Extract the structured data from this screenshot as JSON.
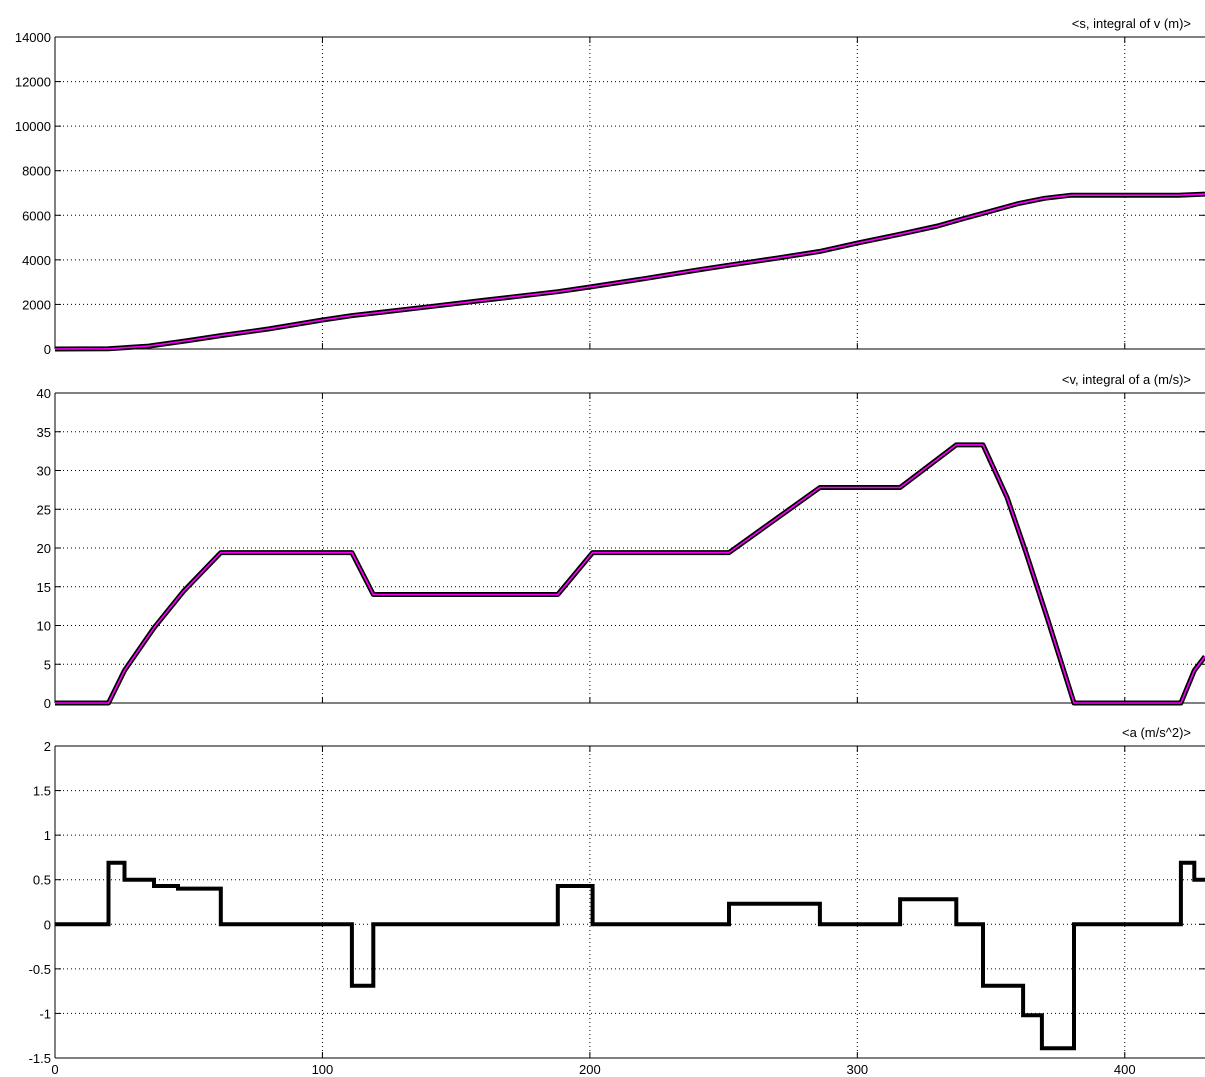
{
  "chart_data": [
    {
      "type": "line",
      "title": "<s, integral of v (m)>",
      "xlim": [
        0,
        430
      ],
      "ylim": [
        0,
        14000
      ],
      "yticks": [
        0,
        2000,
        4000,
        6000,
        8000,
        10000,
        12000,
        14000
      ],
      "xticks": [
        100,
        200,
        300,
        400
      ],
      "grid": true,
      "series": [
        {
          "color_outer": "#000000",
          "color_inner": "#ff00ff",
          "x": [
            0,
            20,
            35,
            50,
            62,
            80,
            100,
            111,
            120,
            140,
            160,
            188,
            200,
            220,
            240,
            252,
            270,
            286,
            300,
            316,
            330,
            340,
            347,
            360,
            370,
            380,
            400,
            420,
            430
          ],
          "y": [
            0,
            10,
            130,
            380,
            600,
            900,
            1300,
            1500,
            1620,
            1900,
            2180,
            2570,
            2780,
            3150,
            3540,
            3760,
            4080,
            4380,
            4750,
            5150,
            5520,
            5860,
            6090,
            6520,
            6760,
            6900,
            6900,
            6900,
            6950
          ]
        }
      ]
    },
    {
      "type": "line",
      "title": "<v, integral of a (m/s)>",
      "xlim": [
        0,
        430
      ],
      "ylim": [
        0,
        40
      ],
      "yticks": [
        0,
        5,
        10,
        15,
        20,
        25,
        30,
        35,
        40
      ],
      "xticks": [
        100,
        200,
        300,
        400
      ],
      "grid": true,
      "series": [
        {
          "color_outer": "#000000",
          "color_inner": "#ff00ff",
          "x": [
            0,
            20,
            26,
            37,
            48,
            62,
            111,
            119,
            188,
            201,
            252,
            286,
            316,
            337,
            347,
            356,
            363,
            371,
            381,
            421,
            426,
            430
          ],
          "y": [
            0,
            0,
            4.2,
            9.7,
            14.4,
            19.4,
            19.4,
            14.0,
            14.0,
            19.4,
            19.4,
            27.8,
            27.8,
            33.3,
            33.3,
            26.5,
            19.5,
            11.0,
            0,
            0,
            4.2,
            6.0
          ]
        }
      ]
    },
    {
      "type": "line",
      "title": "<a (m/s^2)>",
      "xlim": [
        0,
        430
      ],
      "ylim": [
        -1.5,
        2
      ],
      "yticks": [
        -1.5,
        -1,
        -0.5,
        0,
        0.5,
        1,
        1.5,
        2
      ],
      "xticks": [
        0,
        100,
        200,
        300,
        400
      ],
      "grid": true,
      "series": [
        {
          "color_outer": "#000000",
          "step": true,
          "x": [
            0,
            20,
            20,
            26,
            26,
            37,
            37,
            46,
            46,
            62,
            62,
            111,
            111,
            119,
            119,
            188,
            188,
            201,
            201,
            252,
            252,
            286,
            286,
            316,
            316,
            337,
            337,
            347,
            347,
            362,
            362,
            369,
            369,
            381,
            381,
            421,
            421,
            426,
            426,
            430
          ],
          "y": [
            0,
            0,
            0.69,
            0.69,
            0.5,
            0.5,
            0.43,
            0.43,
            0.4,
            0.4,
            0,
            0,
            -0.69,
            -0.69,
            0,
            0,
            0.43,
            0.43,
            0,
            0,
            0.23,
            0.23,
            0,
            0,
            0.28,
            0.28,
            0,
            0,
            -0.69,
            -0.69,
            -1.02,
            -1.02,
            -1.39,
            -1.39,
            0,
            0,
            0.69,
            0.69,
            0.5,
            0.5
          ]
        }
      ]
    }
  ]
}
